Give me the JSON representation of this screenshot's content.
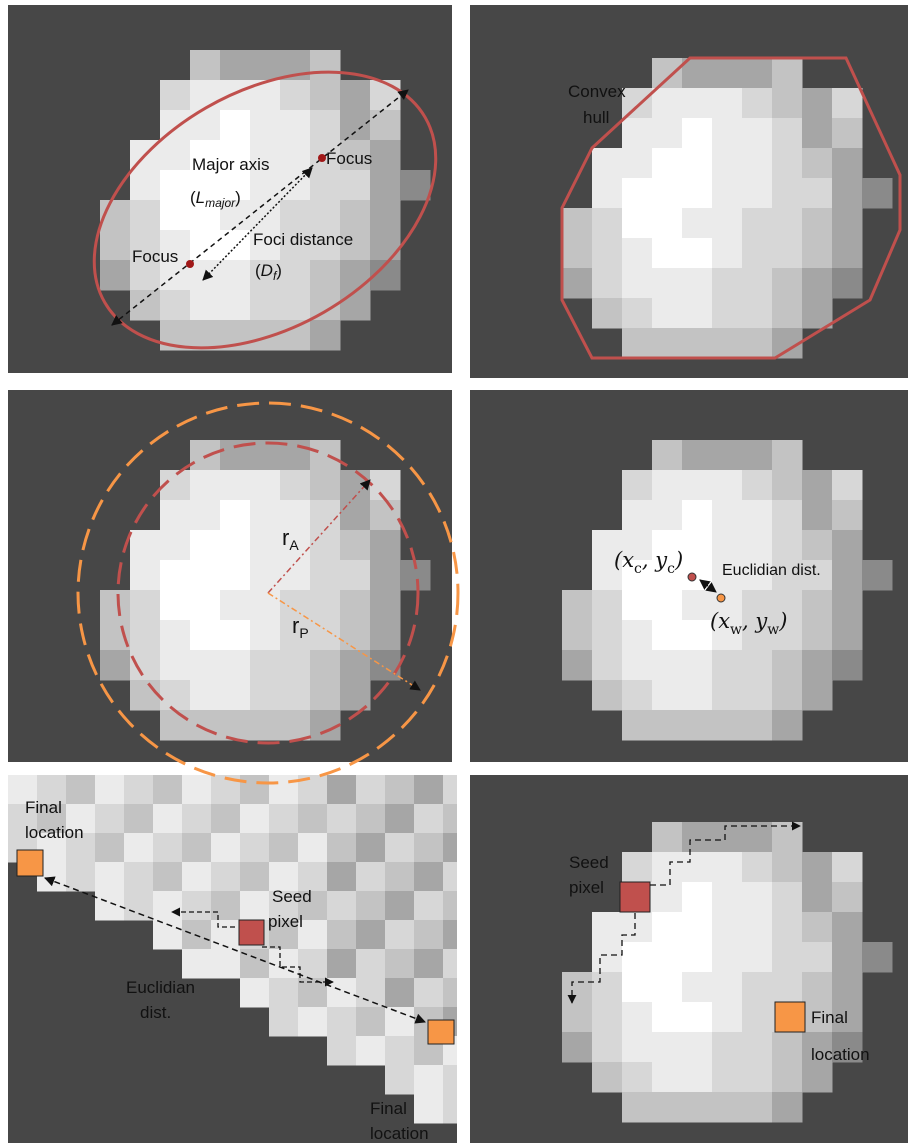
{
  "ellipse_panel": {
    "major_axis": "Major axis",
    "l_symbol": "L",
    "l_sub": "major",
    "focus_left": "Focus",
    "focus_right": "Focus",
    "foci_distance": "Foci distance",
    "d_symbol": "D",
    "d_sub": "f"
  },
  "hull_panel": {
    "label": [
      "Convex",
      "hull"
    ]
  },
  "radius_panel": {
    "r_a": "r",
    "r_a_sub": "A",
    "r_p": "r",
    "r_p_sub": "P"
  },
  "centroid_panel": {
    "centroid_parts": [
      "(x",
      "c",
      ", y",
      "c",
      ")"
    ],
    "distance": "Euclidian dist.",
    "weighted_parts": [
      "(x",
      "w",
      ", y",
      "w",
      ")"
    ]
  },
  "zoom_panel": {
    "final_top": [
      "Final",
      "location"
    ],
    "seed": [
      "Seed",
      "pixel"
    ],
    "distance": [
      "Euclidian",
      "dist."
    ],
    "final_bottom": [
      "Final",
      "location"
    ]
  },
  "seed_panel": {
    "seed": [
      "Seed",
      "pixel"
    ],
    "final": [
      "Final",
      "location"
    ]
  }
}
